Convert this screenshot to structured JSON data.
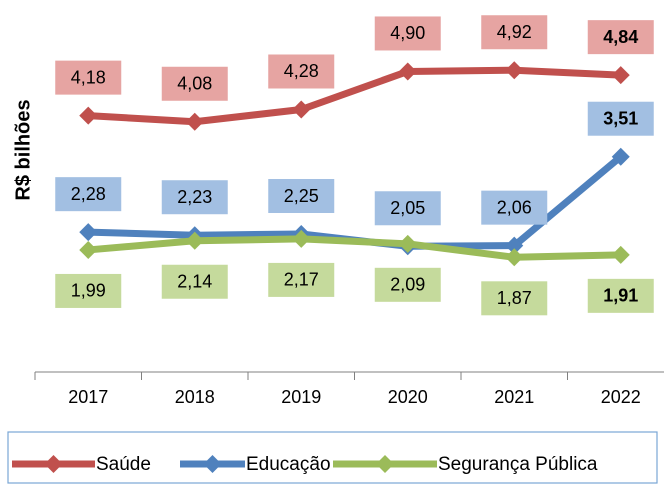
{
  "chart_data": {
    "type": "line",
    "y_label": "R$ bilhões",
    "categories": [
      "2017",
      "2018",
      "2019",
      "2020",
      "2021",
      "2022"
    ],
    "series": [
      {
        "name": "Saúde",
        "color": "#c0504d",
        "label_color": "#e6a4a2",
        "values": [
          4.18,
          4.08,
          4.28,
          4.9,
          4.92,
          4.84
        ],
        "value_labels": [
          "4,18",
          "4,08",
          "4,28",
          "4,90",
          "4,92",
          "4,84"
        ]
      },
      {
        "name": "Educação",
        "color": "#4f81bd",
        "label_color": "#a2bfe2",
        "values": [
          2.28,
          2.23,
          2.25,
          2.05,
          2.06,
          3.51
        ],
        "value_labels": [
          "2,28",
          "2,23",
          "2,25",
          "2,05",
          "2,06",
          "3,51"
        ]
      },
      {
        "name": "Segurança Pública",
        "color": "#9bbb59",
        "label_color": "#c5da9c",
        "values": [
          1.99,
          2.14,
          2.17,
          2.09,
          1.87,
          1.91
        ],
        "value_labels": [
          "1,99",
          "2,14",
          "2,17",
          "2,09",
          "1,87",
          "1,91"
        ]
      }
    ],
    "ylim": [
      0,
      6
    ],
    "legend": "bottom"
  }
}
